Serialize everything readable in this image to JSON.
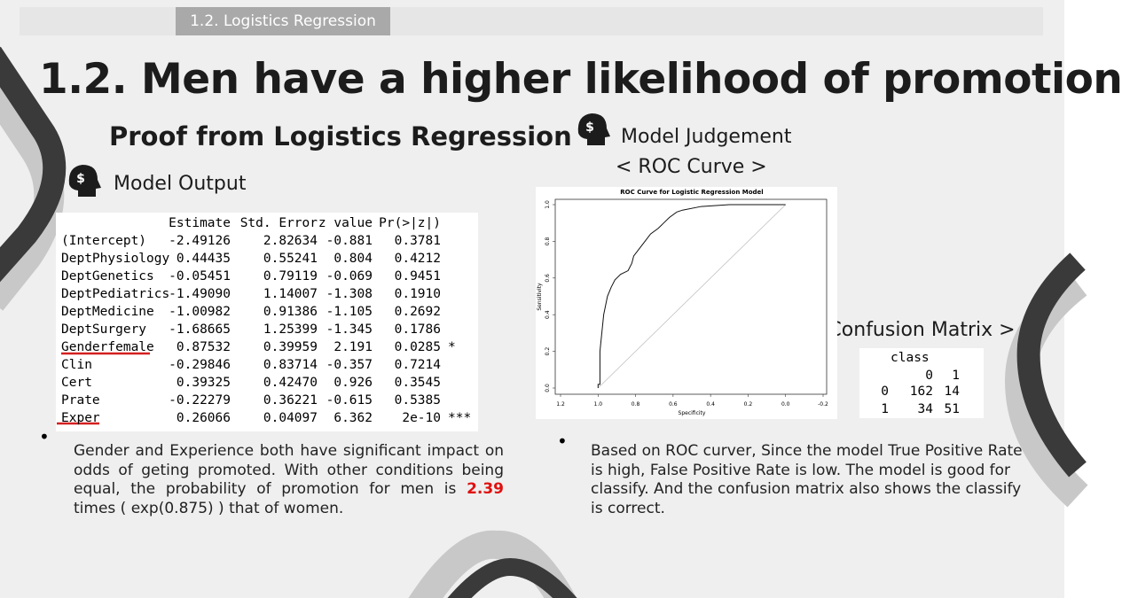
{
  "header": {
    "tab": "1.2. Logistics Regression"
  },
  "title": "1.2. Men have a higher likelihood of promotion",
  "left": {
    "subtitle": "Proof from Logistics Regression",
    "section": "Model Output",
    "table": {
      "header": [
        "Estimate",
        "Std. Error",
        "z value",
        "Pr(>|z|)"
      ],
      "rows": [
        [
          "(Intercept)",
          "-2.49126",
          "2.82634",
          "-0.881",
          "0.3781",
          ""
        ],
        [
          "DeptPhysiology",
          "0.44435",
          "0.55241",
          "0.804",
          "0.4212",
          ""
        ],
        [
          "DeptGenetics",
          "-0.05451",
          "0.79119",
          "-0.069",
          "0.9451",
          ""
        ],
        [
          "DeptPediatrics",
          "-1.49090",
          "1.14007",
          "-1.308",
          "0.1910",
          ""
        ],
        [
          "DeptMedicine",
          "-1.00982",
          "0.91386",
          "-1.105",
          "0.2692",
          ""
        ],
        [
          "DeptSurgery",
          "-1.68665",
          "1.25399",
          "-1.345",
          "0.1786",
          ""
        ],
        [
          "Genderfemale",
          "0.87532",
          "0.39959",
          "2.191",
          "0.0285",
          "*"
        ],
        [
          "Clin",
          "-0.29846",
          "0.83714",
          "-0.357",
          "0.7214",
          ""
        ],
        [
          "Cert",
          "0.39325",
          "0.42470",
          "0.926",
          "0.3545",
          ""
        ],
        [
          "Prate",
          "-0.22279",
          "0.36221",
          "-0.615",
          "0.5385",
          ""
        ],
        [
          "Exper",
          "0.26066",
          "0.04097",
          "6.362",
          "2e-10",
          "***"
        ]
      ]
    },
    "bullet": {
      "before": "Gender and Experience both have significant impact on odds of geting promoted. With other conditions being equal, the probability of promotion for men is",
      "highlight": "2.39",
      "after": "times ( exp(0.875) ) that of women."
    }
  },
  "right": {
    "section": "Model Judgement",
    "roc_heading": "< ROC Curve >",
    "roc": {
      "title": "ROC Curve for Logistic Regression Model",
      "xlabel": "Specificity",
      "ylabel": "Sensitivity",
      "xlim": [
        1.2,
        -0.2
      ],
      "ylim": [
        0,
        1
      ],
      "xticks": [
        1.2,
        {
          "value": 1,
          "label": "1.0"
        },
        0.8,
        0.6,
        0.4,
        0.2,
        {
          "value": 0,
          "label": "0.0"
        },
        -0.2
      ],
      "yticks": [
        {
          "value": 0,
          "label": "0.0"
        },
        0.2,
        0.4,
        0.6,
        0.8,
        {
          "value": 1,
          "label": "1.0"
        }
      ],
      "specificity": [
        1.0,
        1.0,
        0.99,
        0.99,
        0.98,
        0.97,
        0.96,
        0.95,
        0.93,
        0.91,
        0.88,
        0.84,
        0.82,
        0.81,
        0.78,
        0.75,
        0.72,
        0.68,
        0.65,
        0.62,
        0.58,
        0.55,
        0.45,
        0.3,
        0.0
      ],
      "sensitivity": [
        0.0,
        0.02,
        0.02,
        0.2,
        0.3,
        0.4,
        0.45,
        0.5,
        0.55,
        0.59,
        0.62,
        0.64,
        0.68,
        0.72,
        0.76,
        0.8,
        0.84,
        0.87,
        0.9,
        0.93,
        0.96,
        0.97,
        0.99,
        1.0,
        1.0
      ]
    },
    "cm_heading": "< Confusion Matrix >",
    "confusion": {
      "label": "class",
      "columns": [
        "0",
        "1"
      ],
      "rows": [
        [
          "0",
          "162",
          "14"
        ],
        [
          "1",
          "34",
          "51"
        ]
      ]
    },
    "bullet": "Based on ROC curver, Since the model True Positive Rate is high, False Positive Rate is low. The model is good for classify. And the confusion matrix also shows the classify is correct."
  }
}
